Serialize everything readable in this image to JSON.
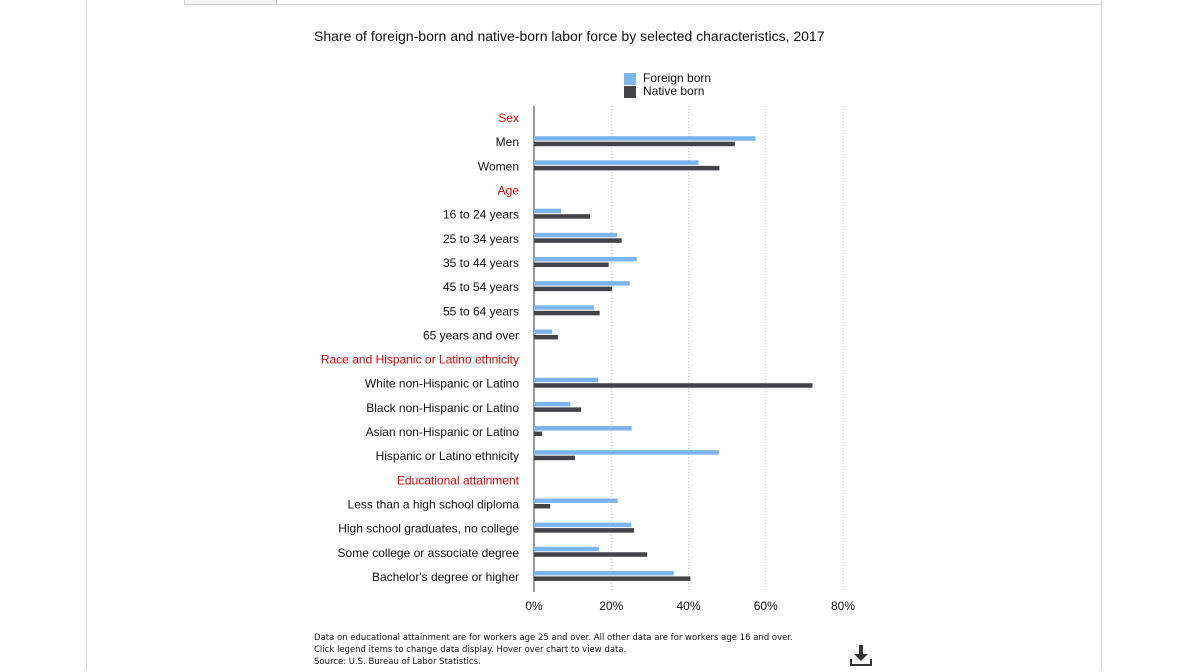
{
  "chart_data": {
    "type": "bar",
    "orientation": "horizontal",
    "title": "Share of foreign-born and native-born labor force by selected characteristics, 2017",
    "xlim": [
      0,
      80
    ],
    "x_ticks": [
      "0%",
      "20%",
      "40%",
      "60%",
      "80%"
    ],
    "x_tick_values": [
      0,
      20,
      40,
      60,
      80
    ],
    "grid": "vertical dotted",
    "legend_position": "top",
    "series": [
      {
        "name": "Foreign born",
        "color": "#7cb5ec"
      },
      {
        "name": "Native born",
        "color": "#434348"
      }
    ],
    "rows": [
      {
        "label": "Sex",
        "group": true
      },
      {
        "label": "Men",
        "values": [
          57.4,
          52.0
        ]
      },
      {
        "label": "Women",
        "values": [
          42.6,
          48.0
        ]
      },
      {
        "label": "Age",
        "group": true
      },
      {
        "label": "16 to 24 years",
        "values": [
          7.0,
          14.5
        ]
      },
      {
        "label": "25 to 34 years",
        "values": [
          21.5,
          22.7
        ]
      },
      {
        "label": "35 to 44 years",
        "values": [
          26.6,
          19.3
        ]
      },
      {
        "label": "45 to 54 years",
        "values": [
          24.8,
          20.2
        ]
      },
      {
        "label": "55 to 64 years",
        "values": [
          15.5,
          17.0
        ]
      },
      {
        "label": "65 years and over",
        "values": [
          4.7,
          6.2
        ]
      },
      {
        "label": "Race and Hispanic or Latino ethnicity",
        "group": true
      },
      {
        "label": "White non-Hispanic or Latino",
        "values": [
          16.6,
          72.1
        ]
      },
      {
        "label": "Black non-Hispanic or Latino",
        "values": [
          9.4,
          12.2
        ]
      },
      {
        "label": "Asian non-Hispanic or Latino",
        "values": [
          25.3,
          2.1
        ]
      },
      {
        "label": "Hispanic or Latino ethnicity",
        "values": [
          47.9,
          10.6
        ]
      },
      {
        "label": "Educational attainment",
        "group": true
      },
      {
        "label": "Less than a high school diploma",
        "values": [
          21.7,
          4.2
        ]
      },
      {
        "label": "High school graduates, no college",
        "values": [
          25.2,
          25.9
        ]
      },
      {
        "label": "Some college or associate degree",
        "values": [
          16.8,
          29.3
        ]
      },
      {
        "label": "Bachelor's degree or higher",
        "values": [
          36.2,
          40.5
        ]
      }
    ]
  },
  "notes": [
    "Data on educational attainment are for workers age 25 and over. All other data are for workers age 16 and over.",
    "Click legend items to change data display. Hover over chart to view data.",
    "Source: U.S. Bureau of Labor Statistics."
  ],
  "download_icon": "download-icon"
}
